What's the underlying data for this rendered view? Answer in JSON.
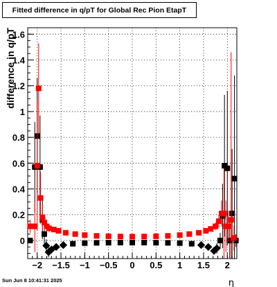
{
  "title": "Fitted difference in q/pT for Global Rec Pion EtapT",
  "timestamp": "Sun Jun  8 10:41:31 2025",
  "chart_data": {
    "type": "scatter",
    "title": "Fitted difference in q/pT for Global Rec Pion EtapT",
    "xlabel": "η",
    "ylabel": "difference in q/pT",
    "xlim": [
      -2.2,
      2.2
    ],
    "ylim": [
      -0.14,
      1.65
    ],
    "grid": true,
    "x_ticks": [
      -2,
      -1.5,
      -1,
      -0.5,
      0,
      0.5,
      1,
      1.5,
      2
    ],
    "x_tick_labels": [
      "−2",
      "−1.5",
      "−1",
      "−0.5",
      "0",
      "0.5",
      "1",
      "1.5",
      "2"
    ],
    "y_ticks": [
      0,
      0.2,
      0.4,
      0.6,
      0.8,
      1,
      1.2,
      1.4,
      1.6
    ],
    "y_tick_labels": [
      "0",
      "0.2",
      "0.4",
      "0.6",
      "0.8",
      "1",
      "1.2",
      "1.4",
      "1.6"
    ],
    "series": [
      {
        "color": "#000000",
        "marker": "square",
        "points": [
          {
            "x": -2.15,
            "y": 0.0,
            "err": 0.02
          },
          {
            "x": -2.05,
            "y": 0.57,
            "err": 0.35
          },
          {
            "x": -2.0,
            "y": 0.81,
            "err": 0.45
          },
          {
            "x": -1.94,
            "y": 0.57,
            "err": 0.4
          },
          {
            "x": -1.89,
            "y": 0.16,
            "err": 0.15
          },
          {
            "x": -1.85,
            "y": 0.05,
            "err": 0.08
          },
          {
            "x": -1.81,
            "y": -0.04,
            "err": 0.05
          },
          {
            "x": -1.76,
            "y": -0.09,
            "err": 0.04
          },
          {
            "x": -1.7,
            "y": -0.07,
            "err": 0.03
          },
          {
            "x": -1.6,
            "y": -0.05,
            "err": 0.02
          },
          {
            "x": -1.45,
            "y": -0.035,
            "err": 0.01
          },
          {
            "x": -1.25,
            "y": -0.025,
            "err": 0.008
          },
          {
            "x": -1.0,
            "y": -0.02,
            "err": 0.005
          },
          {
            "x": -0.75,
            "y": -0.018,
            "err": 0.004
          },
          {
            "x": -0.5,
            "y": -0.017,
            "err": 0.004
          },
          {
            "x": -0.25,
            "y": -0.016,
            "err": 0.004
          },
          {
            "x": 0.0,
            "y": -0.016,
            "err": 0.004
          },
          {
            "x": 0.25,
            "y": -0.016,
            "err": 0.004
          },
          {
            "x": 0.5,
            "y": -0.017,
            "err": 0.004
          },
          {
            "x": 0.75,
            "y": -0.018,
            "err": 0.004
          },
          {
            "x": 1.0,
            "y": -0.02,
            "err": 0.005
          },
          {
            "x": 1.25,
            "y": -0.025,
            "err": 0.008
          },
          {
            "x": 1.45,
            "y": -0.035,
            "err": 0.01
          },
          {
            "x": 1.6,
            "y": -0.05,
            "err": 0.02
          },
          {
            "x": 1.72,
            "y": -0.08,
            "err": 0.03
          },
          {
            "x": 1.78,
            "y": -0.06,
            "err": 0.04
          },
          {
            "x": 1.85,
            "y": 0.0,
            "err": 0.06
          },
          {
            "x": 1.9,
            "y": 0.19,
            "err": 0.25
          },
          {
            "x": 1.94,
            "y": 0.58,
            "err": 0.55
          },
          {
            "x": 2.0,
            "y": 0.56,
            "err": 0.6
          },
          {
            "x": 2.05,
            "y": 0.0,
            "err": 0.15
          },
          {
            "x": 2.1,
            "y": 0.21,
            "err": 0.5
          },
          {
            "x": 2.15,
            "y": 0.48,
            "err": 0.8
          },
          {
            "x": 2.18,
            "y": 0.0,
            "err": 0.05
          }
        ]
      },
      {
        "color": "#ff0000",
        "marker": "square",
        "points": [
          {
            "x": -2.15,
            "y": 0.11,
            "err": 0.05
          },
          {
            "x": -2.05,
            "y": 0.11,
            "err": 0.2
          },
          {
            "x": -2.0,
            "y": 0.58,
            "err": 0.5
          },
          {
            "x": -1.97,
            "y": 1.18,
            "err": 0.35
          },
          {
            "x": -1.93,
            "y": 0.33,
            "err": 0.2
          },
          {
            "x": -1.89,
            "y": 0.18,
            "err": 0.1
          },
          {
            "x": -1.85,
            "y": 0.14,
            "err": 0.06
          },
          {
            "x": -1.8,
            "y": 0.11,
            "err": 0.04
          },
          {
            "x": -1.75,
            "y": 0.095,
            "err": 0.03
          },
          {
            "x": -1.65,
            "y": 0.085,
            "err": 0.02
          },
          {
            "x": -1.55,
            "y": 0.075,
            "err": 0.015
          },
          {
            "x": -1.4,
            "y": 0.06,
            "err": 0.01
          },
          {
            "x": -1.2,
            "y": 0.05,
            "err": 0.008
          },
          {
            "x": -1.0,
            "y": 0.042,
            "err": 0.006
          },
          {
            "x": -0.75,
            "y": 0.036,
            "err": 0.005
          },
          {
            "x": -0.5,
            "y": 0.033,
            "err": 0.005
          },
          {
            "x": -0.25,
            "y": 0.031,
            "err": 0.005
          },
          {
            "x": 0.0,
            "y": 0.03,
            "err": 0.005
          },
          {
            "x": 0.25,
            "y": 0.031,
            "err": 0.005
          },
          {
            "x": 0.5,
            "y": 0.033,
            "err": 0.005
          },
          {
            "x": 0.75,
            "y": 0.036,
            "err": 0.005
          },
          {
            "x": 1.0,
            "y": 0.042,
            "err": 0.006
          },
          {
            "x": 1.2,
            "y": 0.05,
            "err": 0.008
          },
          {
            "x": 1.4,
            "y": 0.06,
            "err": 0.01
          },
          {
            "x": 1.55,
            "y": 0.075,
            "err": 0.015
          },
          {
            "x": 1.65,
            "y": 0.09,
            "err": 0.02
          },
          {
            "x": 1.75,
            "y": 0.11,
            "err": 0.03
          },
          {
            "x": 1.82,
            "y": 0.15,
            "err": 0.05
          },
          {
            "x": 1.88,
            "y": 0.21,
            "err": 0.1
          },
          {
            "x": 1.93,
            "y": 0.21,
            "err": 0.35
          },
          {
            "x": 1.97,
            "y": 0.11,
            "err": 0.2
          },
          {
            "x": 2.02,
            "y": 0.11,
            "err": 0.12
          },
          {
            "x": 2.08,
            "y": 0.16,
            "err": 1.3
          },
          {
            "x": 2.14,
            "y": 0.02,
            "err": 0.1
          }
        ]
      }
    ]
  }
}
